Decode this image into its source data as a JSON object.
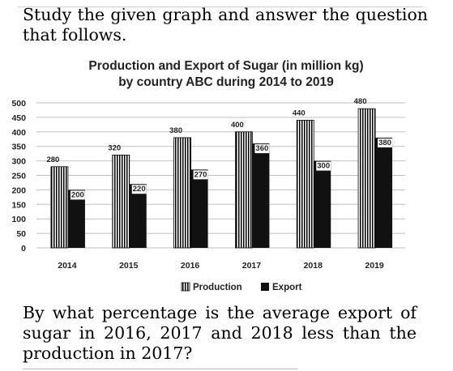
{
  "question": {
    "intro": "Study the given graph and answer the question that follows.",
    "text": "By what percentage is the average export of sugar in 2016, 2017 and 2018 less than the production in 2017?"
  },
  "colors": {
    "production_stripe": "#000000",
    "production_bg": "#ffffff",
    "export": "#111111",
    "grid": "#bfbfbf"
  },
  "chart_data": {
    "type": "bar",
    "title": "Production and Export of Sugar (in million kg)",
    "subtitle": "by country ABC during 2014 to 2019",
    "categories": [
      "2014",
      "2015",
      "2016",
      "2017",
      "2018",
      "2019"
    ],
    "series": [
      {
        "name": "Production",
        "values": [
          280,
          320,
          380,
          400,
          440,
          480
        ],
        "pattern": "vertical-stripes"
      },
      {
        "name": "Export",
        "values": [
          200,
          220,
          270,
          360,
          300,
          380
        ],
        "pattern": "solid-black"
      }
    ],
    "yticks": [
      "0",
      "50",
      "100",
      "150",
      "200",
      "250",
      "300",
      "350",
      "400",
      "450",
      "500"
    ],
    "ylim": [
      0,
      500
    ],
    "grid": true,
    "legend": "bottom-center"
  }
}
